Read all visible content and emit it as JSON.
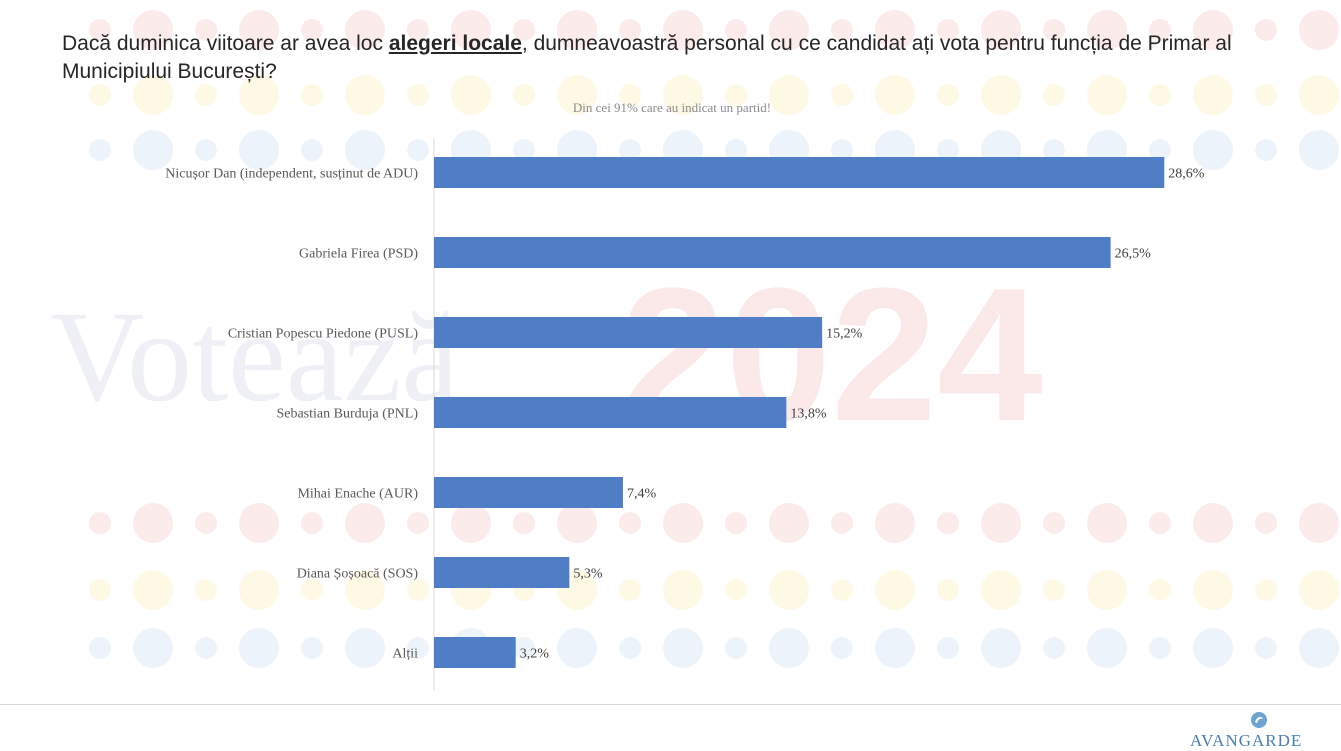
{
  "header": {
    "title_part1": "Dacă duminica viitoare ar avea loc ",
    "title_emphasis": "alegeri locale",
    "title_part2": ", dumneavoastră personal cu ce candidat ați vota pentru funcția de Primar al Municipiului București?",
    "subtitle": "Din cei 91% care au indicat un partid!"
  },
  "watermark": {
    "word": "Votează",
    "year": "2024"
  },
  "logo": {
    "text": "AVANGARDE"
  },
  "chart_data": {
    "type": "bar",
    "orientation": "horizontal",
    "categories": [
      "Nicușor Dan (independent, susținut de ADU)",
      "Gabriela Firea (PSD)",
      "Cristian Popescu Piedone (PUSL)",
      "Sebastian Burduja (PNL)",
      "Mihai Enache (AUR)",
      "Diana Șoșoacă (SOS)",
      "Alții"
    ],
    "values": [
      28.6,
      26.5,
      15.2,
      13.8,
      7.4,
      5.3,
      3.2
    ],
    "value_labels": [
      "28,6%",
      "26,5%",
      "15,2%",
      "13,8%",
      "7,4%",
      "5,3%",
      "3,2%"
    ],
    "unit": "%",
    "xlim": [
      0,
      30
    ],
    "grid": false,
    "bar_color": "#4f7ec7"
  }
}
